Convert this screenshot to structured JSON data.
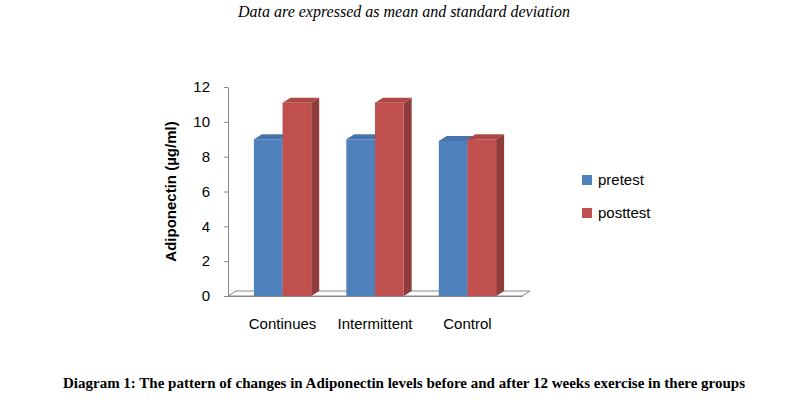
{
  "chart_data": {
    "type": "bar",
    "subtitle": "Data are expressed as mean and standard deviation",
    "title": "Diagram 1: The pattern of changes in Adiponectin levels before and after 12 weeks exercise in there groups",
    "y_label": "Adiponectin (µg/ml)",
    "categories": [
      "Continues",
      "Intermittent",
      "Control"
    ],
    "series": [
      {
        "name": "pretest",
        "color": "#4f81bd",
        "values": [
          9.0,
          9.0,
          8.9
        ]
      },
      {
        "name": "posttest",
        "color": "#c0504d",
        "values": [
          11.1,
          11.1,
          9.0
        ]
      }
    ],
    "ylim": [
      0,
      12
    ],
    "yticks": [
      0,
      2,
      4,
      6,
      8,
      10,
      12
    ],
    "grid": false,
    "legend": "right"
  }
}
